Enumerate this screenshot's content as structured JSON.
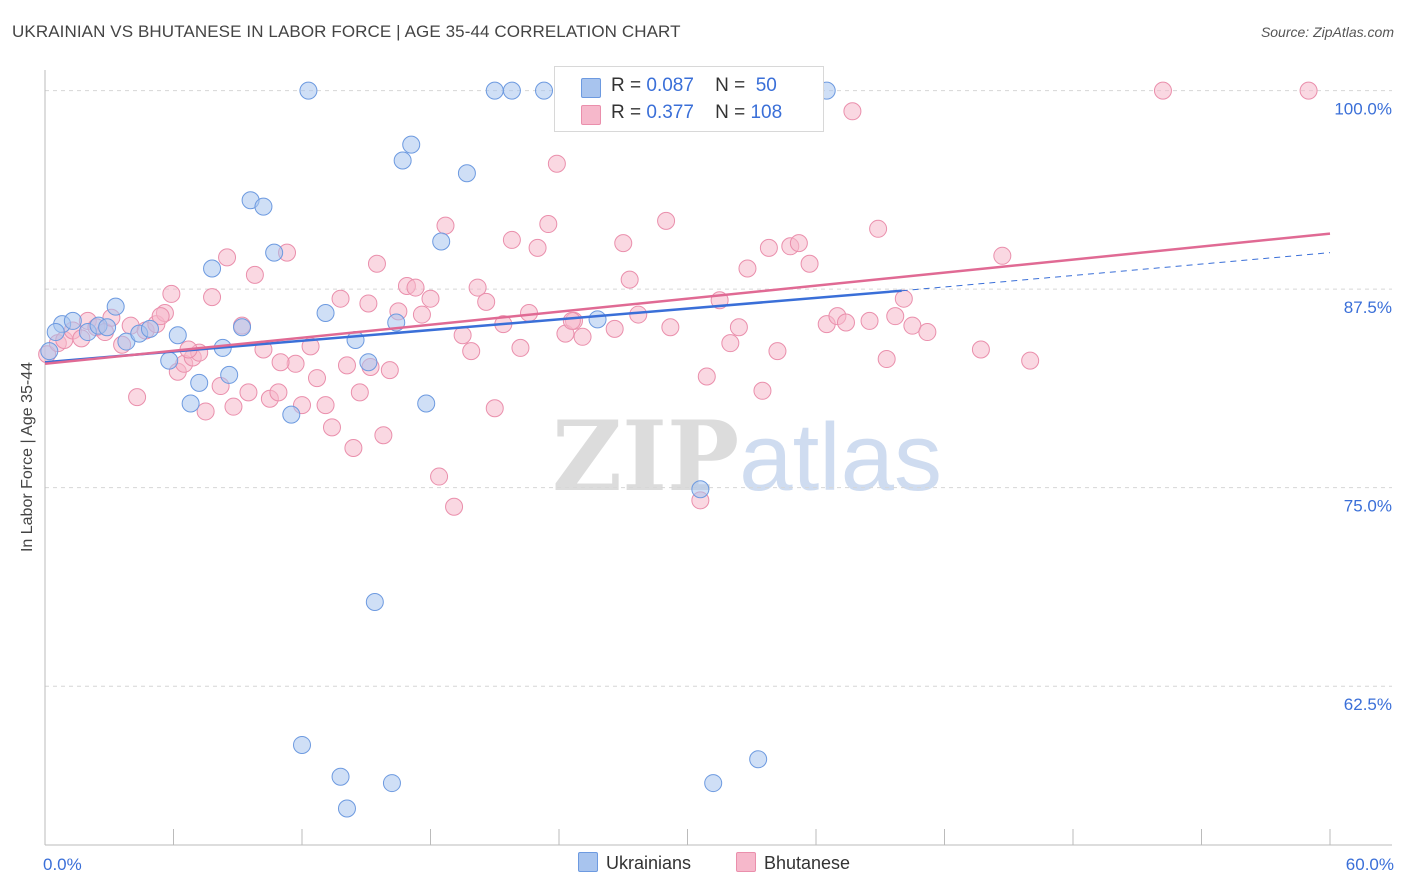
{
  "title": "UKRAINIAN VS BHUTANESE IN LABOR FORCE | AGE 35-44 CORRELATION CHART",
  "source": "Source: ZipAtlas.com",
  "watermark": {
    "zip": "ZIP",
    "atlas": "atlas"
  },
  "legend": {
    "r_label": "R =",
    "n_label": "N =",
    "rows": [
      {
        "r": "0.087",
        "n": "50",
        "color": "#a8c4ee"
      },
      {
        "r": "0.377",
        "n": "108",
        "color": "#f6b8cb"
      }
    ]
  },
  "bottom_legend": [
    {
      "label": "Ukrainians",
      "color": "#a8c4ee"
    },
    {
      "label": "Bhutanese",
      "color": "#f6b8cb"
    }
  ],
  "chart_data": {
    "type": "scatter",
    "xlabel": "",
    "ylabel": "In Labor Force | Age 35-44",
    "xlim": [
      0,
      60
    ],
    "ylim": [
      52.5,
      101.3
    ],
    "x_tick_labels": [
      "0.0%",
      "60.0%"
    ],
    "y_ticks": [
      62.5,
      75.0,
      87.5,
      100.0
    ],
    "y_tick_labels": [
      "62.5%",
      "75.0%",
      "87.5%",
      "100.0%"
    ],
    "grid": "horizontal dashed",
    "legend_position": "top-center",
    "series": [
      {
        "name": "Ukrainians",
        "color": "#a8c4ee",
        "stroke": "#6d9ae0",
        "trend_color": "#3a6fd8",
        "trend": {
          "x0": 0,
          "y0": 82.9,
          "x1": 40,
          "y1": 87.4,
          "dash_to_x": 60,
          "dash_to_y": 89.8
        },
        "points": [
          [
            0.2,
            83.6
          ],
          [
            0.8,
            85.3
          ],
          [
            1.3,
            85.5
          ],
          [
            2.0,
            84.8
          ],
          [
            2.5,
            85.2
          ],
          [
            3.3,
            86.4
          ],
          [
            3.8,
            84.2
          ],
          [
            4.4,
            84.7
          ],
          [
            4.9,
            85.0
          ],
          [
            5.8,
            83.0
          ],
          [
            6.2,
            84.6
          ],
          [
            6.8,
            80.3
          ],
          [
            7.2,
            81.6
          ],
          [
            7.8,
            88.8
          ],
          [
            8.3,
            83.8
          ],
          [
            8.6,
            82.1
          ],
          [
            9.2,
            85.1
          ],
          [
            9.6,
            93.1
          ],
          [
            10.2,
            92.7
          ],
          [
            10.7,
            89.8
          ],
          [
            11.5,
            79.6
          ],
          [
            12.3,
            100.0
          ],
          [
            13.1,
            86.0
          ],
          [
            13.8,
            56.8
          ],
          [
            14.1,
            54.8
          ],
          [
            14.5,
            84.3
          ],
          [
            15.1,
            82.9
          ],
          [
            15.4,
            67.8
          ],
          [
            16.2,
            56.4
          ],
          [
            16.4,
            85.4
          ],
          [
            16.7,
            95.6
          ],
          [
            17.1,
            96.6
          ],
          [
            17.8,
            80.3
          ],
          [
            18.5,
            90.5
          ],
          [
            19.7,
            94.8
          ],
          [
            21.0,
            100.0
          ],
          [
            21.8,
            100.0
          ],
          [
            23.3,
            100.0
          ],
          [
            25.0,
            100.0
          ],
          [
            25.8,
            85.6
          ],
          [
            12.0,
            58.8
          ],
          [
            27.7,
            100.0
          ],
          [
            30.6,
            74.9
          ],
          [
            31.2,
            56.4
          ],
          [
            32.0,
            100.0
          ],
          [
            33.3,
            57.9
          ],
          [
            35.8,
            100.0
          ],
          [
            36.5,
            100.0
          ],
          [
            0.5,
            84.8
          ],
          [
            2.9,
            85.1
          ]
        ]
      },
      {
        "name": "Bhutanese",
        "color": "#f6b8cb",
        "stroke": "#ea8fac",
        "trend_color": "#e06a94",
        "trend": {
          "x0": 0,
          "y0": 82.8,
          "x1": 60,
          "y1": 91.0
        },
        "points": [
          [
            0.1,
            83.4
          ],
          [
            0.6,
            84.1
          ],
          [
            0.9,
            84.3
          ],
          [
            1.3,
            84.9
          ],
          [
            1.7,
            84.4
          ],
          [
            2.0,
            85.5
          ],
          [
            2.4,
            85.1
          ],
          [
            2.8,
            84.8
          ],
          [
            3.1,
            85.7
          ],
          [
            3.6,
            84.0
          ],
          [
            4.0,
            85.2
          ],
          [
            4.3,
            80.7
          ],
          [
            4.7,
            84.9
          ],
          [
            5.2,
            85.3
          ],
          [
            5.6,
            86.0
          ],
          [
            5.9,
            87.2
          ],
          [
            6.2,
            82.3
          ],
          [
            6.5,
            82.8
          ],
          [
            6.9,
            83.2
          ],
          [
            7.2,
            83.5
          ],
          [
            7.5,
            79.8
          ],
          [
            7.8,
            87.0
          ],
          [
            8.2,
            81.4
          ],
          [
            8.5,
            89.5
          ],
          [
            8.8,
            80.1
          ],
          [
            9.2,
            85.2
          ],
          [
            9.5,
            81.0
          ],
          [
            9.8,
            88.4
          ],
          [
            10.2,
            83.7
          ],
          [
            10.5,
            80.6
          ],
          [
            10.9,
            81.0
          ],
          [
            11.3,
            89.8
          ],
          [
            11.7,
            82.8
          ],
          [
            12.0,
            80.2
          ],
          [
            12.4,
            83.9
          ],
          [
            12.7,
            81.9
          ],
          [
            13.1,
            80.2
          ],
          [
            13.4,
            78.8
          ],
          [
            13.8,
            86.9
          ],
          [
            14.1,
            82.7
          ],
          [
            14.4,
            77.5
          ],
          [
            14.7,
            81.0
          ],
          [
            15.1,
            86.6
          ],
          [
            15.5,
            89.1
          ],
          [
            15.8,
            78.3
          ],
          [
            16.1,
            82.4
          ],
          [
            16.5,
            86.1
          ],
          [
            16.9,
            87.7
          ],
          [
            17.3,
            87.6
          ],
          [
            17.6,
            85.9
          ],
          [
            18.0,
            86.9
          ],
          [
            18.4,
            75.7
          ],
          [
            18.7,
            91.5
          ],
          [
            19.1,
            73.8
          ],
          [
            19.5,
            84.6
          ],
          [
            19.9,
            83.6
          ],
          [
            20.2,
            87.6
          ],
          [
            20.6,
            86.7
          ],
          [
            21.0,
            80.0
          ],
          [
            21.4,
            85.3
          ],
          [
            21.8,
            90.6
          ],
          [
            22.2,
            83.8
          ],
          [
            22.6,
            86.0
          ],
          [
            23.0,
            90.1
          ],
          [
            23.5,
            91.6
          ],
          [
            23.9,
            95.4
          ],
          [
            24.3,
            84.7
          ],
          [
            24.7,
            85.5
          ],
          [
            25.1,
            84.5
          ],
          [
            26.6,
            85.0
          ],
          [
            27.0,
            90.4
          ],
          [
            27.3,
            88.1
          ],
          [
            27.7,
            85.9
          ],
          [
            29.0,
            91.8
          ],
          [
            29.2,
            85.1
          ],
          [
            30.6,
            74.2
          ],
          [
            30.9,
            82.0
          ],
          [
            31.5,
            86.8
          ],
          [
            32.0,
            84.1
          ],
          [
            32.4,
            85.1
          ],
          [
            32.8,
            88.8
          ],
          [
            33.8,
            90.1
          ],
          [
            34.2,
            83.6
          ],
          [
            34.8,
            90.2
          ],
          [
            35.2,
            90.4
          ],
          [
            35.7,
            89.1
          ],
          [
            36.5,
            85.3
          ],
          [
            37.0,
            85.8
          ],
          [
            37.4,
            85.4
          ],
          [
            38.5,
            85.5
          ],
          [
            38.9,
            91.3
          ],
          [
            39.3,
            83.1
          ],
          [
            39.7,
            85.8
          ],
          [
            40.1,
            86.9
          ],
          [
            40.5,
            85.2
          ],
          [
            41.2,
            84.8
          ],
          [
            43.7,
            83.7
          ],
          [
            44.7,
            89.6
          ],
          [
            46.0,
            83.0
          ],
          [
            24.6,
            85.5
          ],
          [
            33.5,
            81.1
          ],
          [
            37.7,
            98.7
          ],
          [
            52.2,
            100.0
          ],
          [
            59.0,
            100.0
          ],
          [
            15.2,
            82.6
          ],
          [
            11.0,
            82.9
          ],
          [
            6.7,
            83.7
          ],
          [
            5.4,
            85.8
          ]
        ]
      }
    ]
  }
}
